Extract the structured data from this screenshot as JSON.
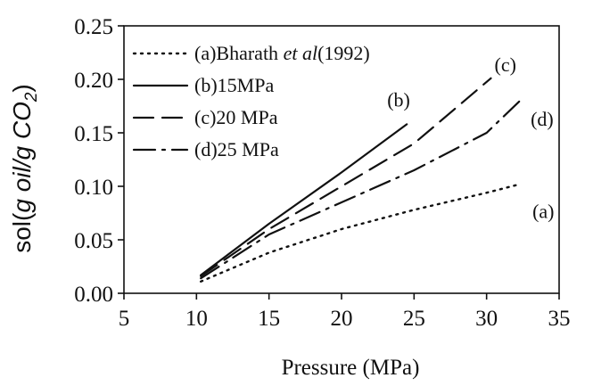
{
  "chart_data": {
    "type": "line",
    "xlabel": "Pressure (MPa)",
    "ylabel": "sol(g oil/g CO2)",
    "xlim": [
      5,
      35
    ],
    "ylim": [
      0.0,
      0.25
    ],
    "x_ticks": [
      "5",
      "10",
      "15",
      "20",
      "25",
      "30",
      "35"
    ],
    "y_ticks": [
      "0.00",
      "0.05",
      "0.10",
      "0.15",
      "0.20",
      "0.25"
    ],
    "grid": false,
    "legend_position": "top-left",
    "series": [
      {
        "name": "(a)Bharath et al(1992)",
        "legend_parts": [
          "(a)Bharath ",
          "et al",
          "(1992)"
        ],
        "curve_label": "(a)",
        "style": "dotted",
        "x": [
          10.3,
          15,
          20,
          25,
          30,
          32.3
        ],
        "y": [
          0.011,
          0.038,
          0.06,
          0.078,
          0.094,
          0.102
        ]
      },
      {
        "name": "(b)15MPa",
        "curve_label": "(b)",
        "style": "solid",
        "x": [
          10.3,
          15,
          20,
          24.5
        ],
        "y": [
          0.017,
          0.065,
          0.113,
          0.158
        ]
      },
      {
        "name": "(c)20 MPa",
        "curve_label": "(c)",
        "style": "dashed",
        "x": [
          10.3,
          15,
          20,
          25,
          30.3
        ],
        "y": [
          0.016,
          0.06,
          0.1,
          0.14,
          0.201
        ]
      },
      {
        "name": "(d)25 MPa",
        "curve_label": "(d)",
        "style": "dash-dot",
        "x": [
          10.3,
          15,
          20,
          25,
          30,
          32.3
        ],
        "y": [
          0.014,
          0.055,
          0.085,
          0.115,
          0.15,
          0.18
        ]
      }
    ]
  }
}
